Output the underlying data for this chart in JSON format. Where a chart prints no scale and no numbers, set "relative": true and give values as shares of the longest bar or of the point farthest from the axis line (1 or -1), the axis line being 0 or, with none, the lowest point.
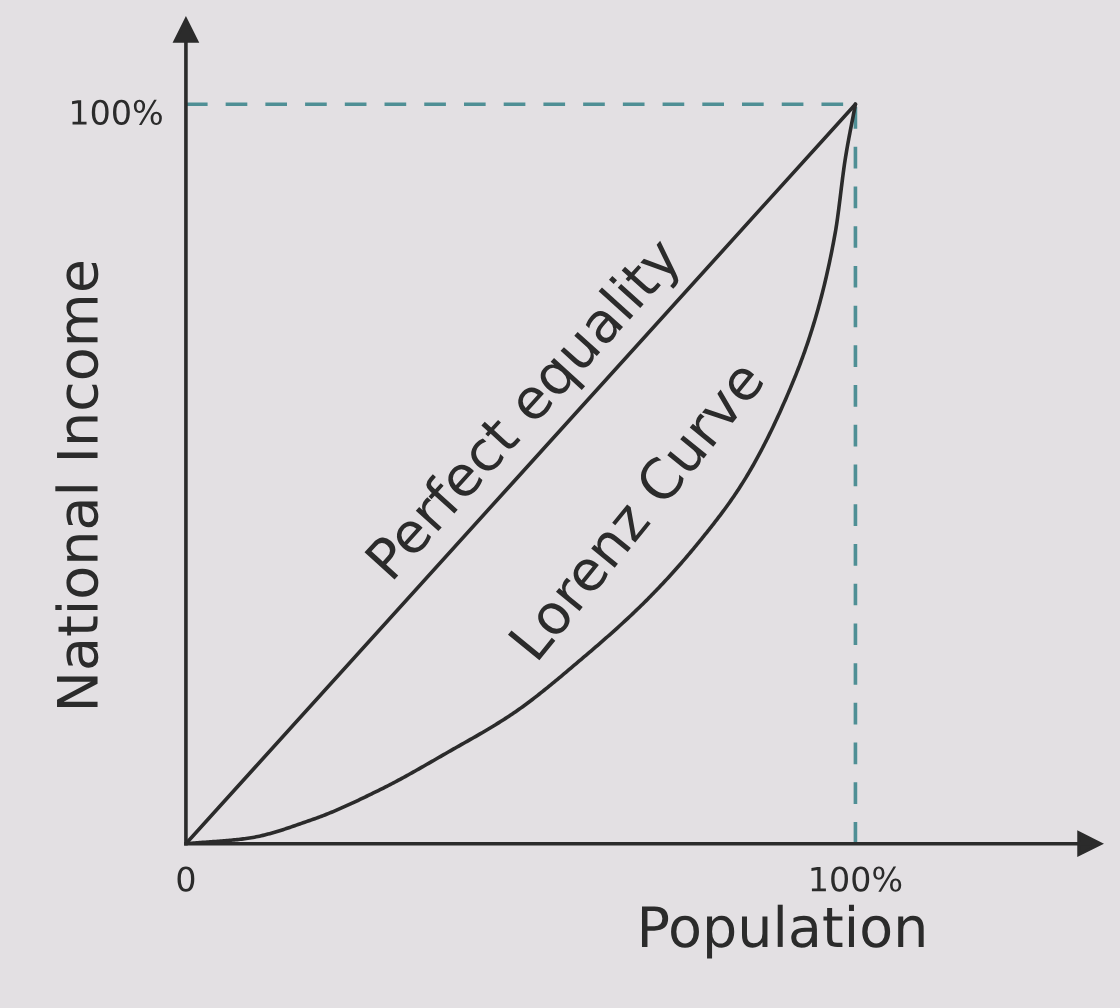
{
  "chart_data": {
    "type": "line",
    "xlabel": "Population",
    "ylabel": "National Income",
    "relative": true,
    "xlim": [
      0,
      135
    ],
    "xticks": [
      0,
      {
        "value": 100,
        "label": "100%"
      }
    ],
    "series": [
      {
        "name": "Perfect equality",
        "color": "#2b2b2b",
        "x": [
          0,
          100
        ],
        "values": [
          0,
          1
        ]
      },
      {
        "name": "Lorenz Curve",
        "color": "#2b2b2b",
        "x": [
          0,
          9,
          19,
          29,
          39,
          49,
          59,
          69,
          77,
          83.5,
          90,
          94,
          97,
          98.5,
          100
        ],
        "values": [
          0,
          0.007,
          0.033,
          0.073,
          0.123,
          0.177,
          0.249,
          0.331,
          0.412,
          0.493,
          0.61,
          0.71,
          0.827,
          0.927,
          1
        ]
      }
    ],
    "ref_lines": [
      {
        "axis": "y",
        "value": 1,
        "color": "#4f8f95",
        "line_style": "dashed"
      },
      {
        "axis": "x",
        "value": 100,
        "color": "#4f8f95",
        "line_style": "dashed"
      }
    ],
    "annotations": [
      {
        "text": "100%",
        "x": 0,
        "y": 1
      }
    ],
    "marker": "none",
    "line_style": "solid"
  }
}
